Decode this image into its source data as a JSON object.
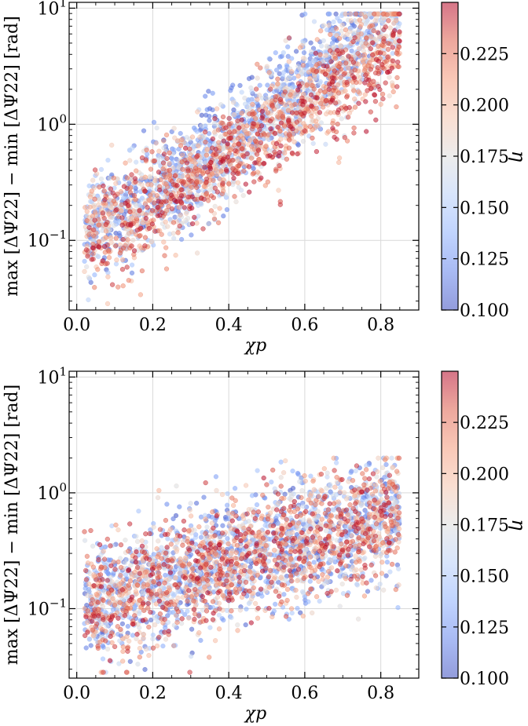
{
  "chart_data": [
    {
      "type": "scatter",
      "panel": "top",
      "xlabel": "χp",
      "ylabel": "max [ΔΨ22] − min [ΔΨ22] [rad]",
      "xlim": [
        -0.02,
        0.9
      ],
      "ylim_log10": [
        -1.6,
        1.05
      ],
      "yscale": "log",
      "x_ticks": [
        0.0,
        0.2,
        0.4,
        0.6,
        0.8
      ],
      "x_tick_labels": [
        "0.0",
        "0.2",
        "0.4",
        "0.6",
        "0.8"
      ],
      "y_ticks_log10": [
        -1,
        0,
        1
      ],
      "y_tick_labels": [
        {
          "base": "10",
          "exp": "−1"
        },
        {
          "base": "10",
          "exp": "0"
        },
        {
          "base": "10",
          "exp": "1"
        }
      ],
      "grid": true,
      "colorbar": {
        "label": "η",
        "range": [
          0.1,
          0.25
        ],
        "ticks": [
          0.1,
          0.125,
          0.15,
          0.175,
          0.2,
          0.225
        ],
        "tick_labels": [
          "0.100",
          "0.125",
          "0.150",
          "0.175",
          "0.200",
          "0.225"
        ],
        "cmap": "coolwarm"
      },
      "n_points": 3000,
      "trend": "log10(y) ≈ −0.9 + 2.2·χp for high-η (red) points; low-η (blue) points sit ~0.4 dex higher at large χp"
    },
    {
      "type": "scatter",
      "panel": "bottom",
      "xlabel": "χp",
      "ylabel": "max [ΔΨ22] − min [ΔΨ22] [rad]",
      "xlim": [
        -0.02,
        0.9
      ],
      "ylim_log10": [
        -1.6,
        1.05
      ],
      "yscale": "log",
      "x_ticks": [
        0.0,
        0.2,
        0.4,
        0.6,
        0.8
      ],
      "x_tick_labels": [
        "0.0",
        "0.2",
        "0.4",
        "0.6",
        "0.8"
      ],
      "y_ticks_log10": [
        -1,
        0,
        1
      ],
      "y_tick_labels": [
        {
          "base": "10",
          "exp": "−1"
        },
        {
          "base": "10",
          "exp": "0"
        },
        {
          "base": "10",
          "exp": "1"
        }
      ],
      "grid": true,
      "colorbar": {
        "label": "η",
        "range": [
          0.1,
          0.25
        ],
        "ticks": [
          0.1,
          0.125,
          0.15,
          0.175,
          0.2,
          0.225
        ],
        "tick_labels": [
          "0.100",
          "0.125",
          "0.150",
          "0.175",
          "0.200",
          "0.225"
        ],
        "cmap": "coolwarm"
      },
      "n_points": 3000,
      "trend": "log10(y) ≈ −0.95 + 0.9·χp, weakly dependent on η"
    }
  ],
  "colors": {
    "cmap_low": "#3b4cc0",
    "cmap_mid": "#dddddd",
    "cmap_high": "#b40426",
    "grid": "#d9d9d9",
    "axis": "#000000"
  }
}
